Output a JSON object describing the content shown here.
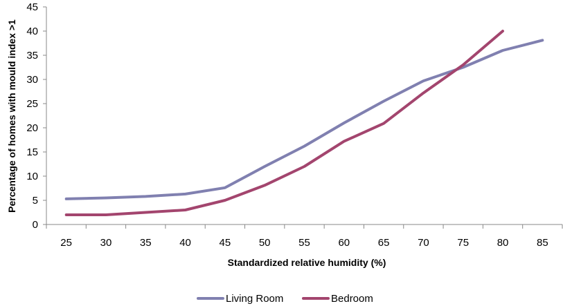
{
  "chart_data": {
    "type": "line",
    "title": "",
    "xlabel": "Standardized relative humidity (%)",
    "ylabel": "Percentage of homes with mould index >1",
    "x": [
      25,
      30,
      35,
      40,
      45,
      50,
      55,
      60,
      65,
      70,
      75,
      80,
      85
    ],
    "x_tick_labels": [
      "25",
      "30",
      "35",
      "40",
      "45",
      "50",
      "55",
      "60",
      "65",
      "70",
      "75",
      "80",
      "85"
    ],
    "y_tick_labels": [
      "0",
      "5",
      "10",
      "15",
      "20",
      "25",
      "30",
      "35",
      "40",
      "45"
    ],
    "ylim": [
      0,
      45
    ],
    "grid": false,
    "legend_position": "bottom",
    "series": [
      {
        "name": "Living Room",
        "color": "#8080b0",
        "values": [
          5.3,
          5.5,
          5.8,
          6.3,
          7.6,
          12,
          16.2,
          21,
          25.5,
          29.7,
          32.5,
          36,
          38.1
        ]
      },
      {
        "name": "Bedroom",
        "color": "#a3456e",
        "values": [
          2,
          2,
          2.5,
          3,
          5,
          8.1,
          12,
          17.2,
          20.9,
          27.2,
          33,
          40,
          null
        ]
      }
    ]
  }
}
